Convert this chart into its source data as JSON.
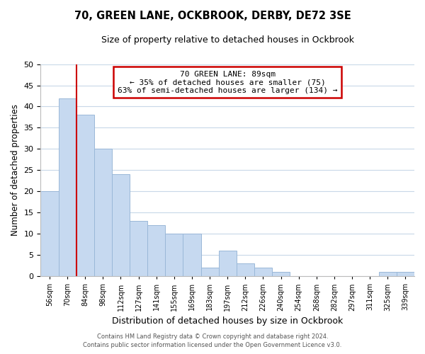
{
  "title": "70, GREEN LANE, OCKBROOK, DERBY, DE72 3SE",
  "subtitle": "Size of property relative to detached houses in Ockbrook",
  "xlabel": "Distribution of detached houses by size in Ockbrook",
  "ylabel": "Number of detached properties",
  "bin_labels": [
    "56sqm",
    "70sqm",
    "84sqm",
    "98sqm",
    "112sqm",
    "127sqm",
    "141sqm",
    "155sqm",
    "169sqm",
    "183sqm",
    "197sqm",
    "212sqm",
    "226sqm",
    "240sqm",
    "254sqm",
    "268sqm",
    "282sqm",
    "297sqm",
    "311sqm",
    "325sqm",
    "339sqm"
  ],
  "bar_heights": [
    20,
    42,
    38,
    30,
    24,
    13,
    12,
    10,
    10,
    2,
    6,
    3,
    2,
    1,
    0,
    0,
    0,
    0,
    0,
    1,
    1
  ],
  "bar_color": "#c6d9f0",
  "bar_edge_color": "#9ab8d8",
  "subject_line_color": "#cc0000",
  "ylim": [
    0,
    50
  ],
  "yticks": [
    0,
    5,
    10,
    15,
    20,
    25,
    30,
    35,
    40,
    45,
    50
  ],
  "annotation_line1": "70 GREEN LANE: 89sqm",
  "annotation_line2": "← 35% of detached houses are smaller (75)",
  "annotation_line3": "63% of semi-detached houses are larger (134) →",
  "annotation_box_color": "#ffffff",
  "annotation_box_edge": "#cc0000",
  "footer_line1": "Contains HM Land Registry data © Crown copyright and database right 2024.",
  "footer_line2": "Contains public sector information licensed under the Open Government Licence v3.0.",
  "background_color": "#ffffff",
  "grid_color": "#c8d8e8"
}
